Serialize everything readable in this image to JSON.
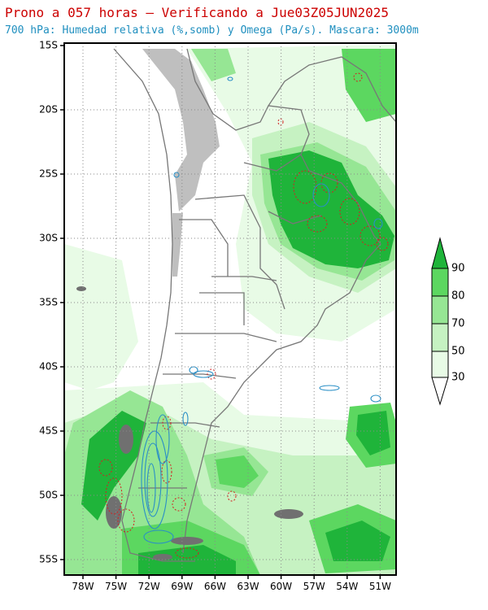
{
  "header": {
    "title": "Prono a 057 horas — Verificando a Jue03Z05JUN2025",
    "subtitle": "700 hPa: Humedad relativa (%,somb) y Omega (Pa/s). Mascara: 3000m"
  },
  "map": {
    "lat_ticks": [
      "15S",
      "20S",
      "25S",
      "30S",
      "35S",
      "40S",
      "45S",
      "50S",
      "55S"
    ],
    "lon_ticks": [
      "78W",
      "75W",
      "72W",
      "69W",
      "66W",
      "63W",
      "60W",
      "57W",
      "54W",
      "51W"
    ],
    "colors": {
      "rh_30": "#e8fbe6",
      "rh_50": "#c6f2c2",
      "rh_70": "#96e694",
      "rh_80": "#5cd760",
      "rh_90": "#1fb43a",
      "mask": "#bfbfbf",
      "borders": "#777777",
      "omega_pos": "#d42020",
      "omega_neg": "#2a8fc6",
      "islands": "#707070"
    }
  },
  "legend": {
    "levels": [
      "90",
      "80",
      "70",
      "50",
      "30"
    ]
  }
}
